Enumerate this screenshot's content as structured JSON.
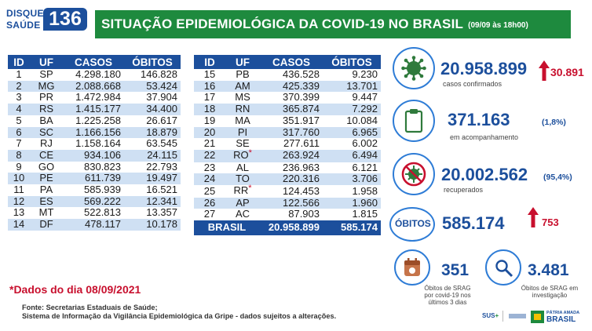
{
  "brand": {
    "line1": "DISQUE",
    "line2": "SAÚDE",
    "number": "136"
  },
  "header": {
    "title": "SITUAÇÃO EPIDEMIOLÓGICA DA COVID-19 NO BRASIL",
    "date": "(09/09 às 18h00)"
  },
  "table_headers": [
    "ID",
    "UF",
    "CASOS",
    "ÓBITOS"
  ],
  "table_left": [
    {
      "id": "1",
      "uf": "SP",
      "casos": "4.298.180",
      "obitos": "146.828"
    },
    {
      "id": "2",
      "uf": "MG",
      "casos": "2.088.668",
      "obitos": "53.424"
    },
    {
      "id": "3",
      "uf": "PR",
      "casos": "1.472.984",
      "obitos": "37.904"
    },
    {
      "id": "4",
      "uf": "RS",
      "casos": "1.415.177",
      "obitos": "34.400"
    },
    {
      "id": "5",
      "uf": "BA",
      "casos": "1.225.258",
      "obitos": "26.617"
    },
    {
      "id": "6",
      "uf": "SC",
      "casos": "1.166.156",
      "obitos": "18.879"
    },
    {
      "id": "7",
      "uf": "RJ",
      "casos": "1.158.164",
      "obitos": "63.545"
    },
    {
      "id": "8",
      "uf": "CE",
      "casos": "934.106",
      "obitos": "24.115"
    },
    {
      "id": "9",
      "uf": "GO",
      "casos": "830.823",
      "obitos": "22.793"
    },
    {
      "id": "10",
      "uf": "PE",
      "casos": "611.739",
      "obitos": "19.497"
    },
    {
      "id": "11",
      "uf": "PA",
      "casos": "585.939",
      "obitos": "16.521"
    },
    {
      "id": "12",
      "uf": "ES",
      "casos": "569.222",
      "obitos": "12.341"
    },
    {
      "id": "13",
      "uf": "MT",
      "casos": "522.813",
      "obitos": "13.357"
    },
    {
      "id": "14",
      "uf": "DF",
      "casos": "478.117",
      "obitos": "10.178"
    }
  ],
  "table_right": [
    {
      "id": "15",
      "uf": "PB",
      "casos": "436.528",
      "obitos": "9.230"
    },
    {
      "id": "16",
      "uf": "AM",
      "casos": "425.339",
      "obitos": "13.701"
    },
    {
      "id": "17",
      "uf": "MS",
      "casos": "370.399",
      "obitos": "9.447"
    },
    {
      "id": "18",
      "uf": "RN",
      "casos": "365.874",
      "obitos": "7.292"
    },
    {
      "id": "19",
      "uf": "MA",
      "casos": "351.917",
      "obitos": "10.084"
    },
    {
      "id": "20",
      "uf": "PI",
      "casos": "317.760",
      "obitos": "6.965"
    },
    {
      "id": "21",
      "uf": "SE",
      "casos": "277.611",
      "obitos": "6.002"
    },
    {
      "id": "22",
      "uf": "RO",
      "casos": "263.924",
      "obitos": "6.494",
      "mark": "*"
    },
    {
      "id": "23",
      "uf": "AL",
      "casos": "236.963",
      "obitos": "6.121"
    },
    {
      "id": "24",
      "uf": "TO",
      "casos": "220.316",
      "obitos": "3.706"
    },
    {
      "id": "25",
      "uf": "RR",
      "casos": "124.453",
      "obitos": "1.958",
      "mark": "*"
    },
    {
      "id": "26",
      "uf": "AP",
      "casos": "122.566",
      "obitos": "1.960"
    },
    {
      "id": "27",
      "uf": "AC",
      "casos": "87.903",
      "obitos": "1.815"
    }
  ],
  "brasil_row": {
    "label": "BRASIL",
    "casos": "20.958.899",
    "obitos": "585.174"
  },
  "footnote": "*Dados do dia 08/09/2021",
  "fonte_line1": "Fonte: Secretarias Estaduais de Saúde;",
  "fonte_line2": "Sistema de Informação da Vigilância Epidemiológica da Gripe - dados sujeitos a alterações.",
  "stats": {
    "confirmados": {
      "value": "20.958.899",
      "label": "casos confirmados",
      "delta": "30.891",
      "icon": "virus-icon"
    },
    "acompanhamento": {
      "value": "371.163",
      "label": "em acompanhamento",
      "pct": "(1,8%)",
      "icon": "clipboard-icon"
    },
    "recuperados": {
      "value": "20.002.562",
      "label": "recuperados",
      "pct": "(95,4%)",
      "icon": "virus-crossed-icon"
    },
    "obitos": {
      "tag": "ÓBITOS",
      "value": "585.174",
      "delta": "753"
    },
    "srag_obitos": {
      "value": "351",
      "label": "Óbitos de SRAG por covid-19 nos últimos 3 dias",
      "icon": "calendar-icon"
    },
    "srag_investigacao": {
      "value": "3.481",
      "label": "Óbitos de SRAG em investigação",
      "icon": "magnifier-icon"
    }
  },
  "footer": {
    "sus": "SUS",
    "gov_line1": "PÁTRIA AMADA",
    "gov_line2": "BRASIL"
  },
  "colors": {
    "blue": "#1c4f9c",
    "green": "#1e8a3e",
    "red": "#c8102e",
    "light_blue": "#cfe0f3"
  }
}
